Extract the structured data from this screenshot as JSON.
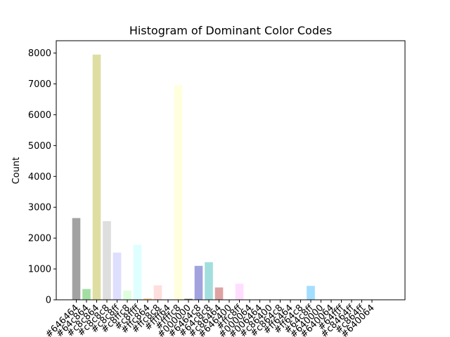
{
  "chart_data": {
    "type": "bar",
    "title": "Histogram of Dominant Color Codes",
    "xlabel": "",
    "ylabel": "Count",
    "ylim": [
      0,
      8400
    ],
    "yticks": [
      0,
      1000,
      2000,
      3000,
      4000,
      5000,
      6000,
      7000,
      8000
    ],
    "grid": false,
    "legend": "none",
    "categories": [
      "#646464",
      "#64c864",
      "#c8c864",
      "#c8c8c8",
      "#c8c8ff",
      "#c8ffc8",
      "#c8ffff",
      "#ffc864",
      "#ffc8c8",
      "#ffff64",
      "#ffffc8",
      "#000000",
      "#6464c8",
      "#64c8c8",
      "#c86464",
      "#646400",
      "#ffc8ff",
      "#000064",
      "#006464",
      "#c86400",
      "#c864c8",
      "#ff6464",
      "#ff64c8",
      "#64c8ff",
      "#640000",
      "#640064",
      "#64ffff",
      "#c8464ff",
      "#c864ff",
      "#640064"
    ],
    "values": [
      2650,
      350,
      7950,
      2550,
      1530,
      300,
      1780,
      50,
      470,
      0,
      6950,
      30,
      1100,
      1220,
      400,
      0,
      520,
      0,
      0,
      0,
      0,
      0,
      0,
      450,
      0,
      0,
      0,
      0,
      0,
      0
    ],
    "colors": [
      "#646464",
      "#64c864",
      "#c8c864",
      "#c8c8c8",
      "#c8c8ff",
      "#c8ffc8",
      "#c8ffff",
      "#ffc864",
      "#ffc8c8",
      "#ffff64",
      "#ffffc8",
      "#000000",
      "#6464c8",
      "#64c8c8",
      "#c86464",
      "#646400",
      "#ffc8ff",
      "#000064",
      "#006464",
      "#c86400",
      "#c864c8",
      "#ff6464",
      "#ff64c8",
      "#64c8ff",
      "#640000",
      "#640064",
      "#64ffff",
      "#c8464f",
      "#c864ff",
      "#640064"
    ],
    "bar_alpha": 0.6
  }
}
